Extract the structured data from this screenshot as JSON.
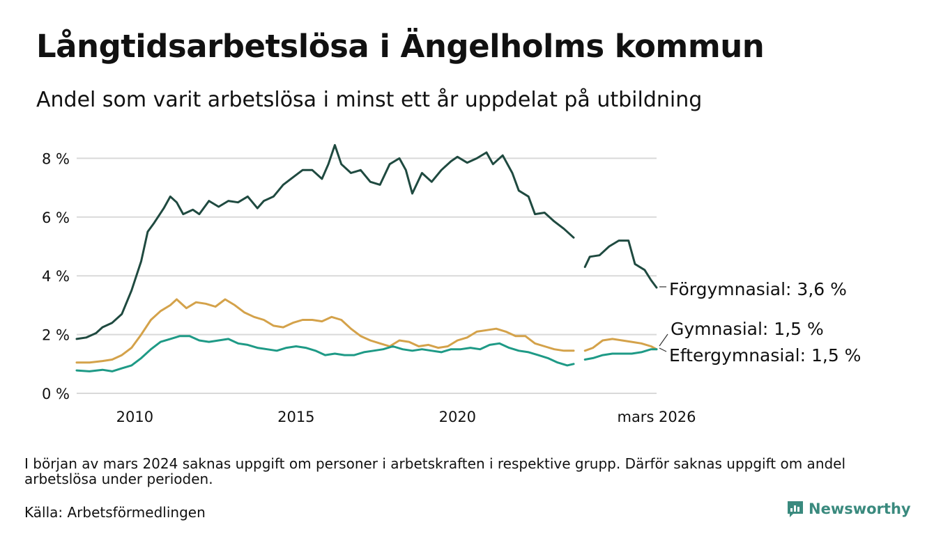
{
  "header": {
    "title": "Långtidsarbetslösa i Ängelholms kommun",
    "subtitle": "Andel som varit arbetslösa i minst ett år uppdelat på utbildning"
  },
  "footer": {
    "note": "I början av mars 2024 saknas uppgift om personer i arbetskraften i respektive grupp. Därför saknas uppgift om andel arbetslösa under perioden.",
    "source": "Källa: Arbetsförmedlingen",
    "brand": "Newsworthy"
  },
  "colors": {
    "forgymnasial": "#1f4a40",
    "gymnasial": "#d4a24a",
    "eftergymnasial": "#1e9a86",
    "grid": "#d9d9d9",
    "brand": "#3a8a7e"
  },
  "chart_data": {
    "type": "line",
    "title": "Långtidsarbetslösa i Ängelholms kommun",
    "xlabel": "",
    "ylabel": "",
    "xlim": [
      2008.2,
      2026.17
    ],
    "ylim": [
      0,
      8.6
    ],
    "y_ticks": [
      0,
      2,
      4,
      6,
      8
    ],
    "y_tick_labels": [
      "0 %",
      "2 %",
      "4 %",
      "6 %",
      "8 %"
    ],
    "x_ticks": [
      2010,
      2015,
      2020,
      2026.17
    ],
    "x_tick_labels": [
      "2010",
      "2015",
      "2020",
      "mars 2026"
    ],
    "grid": true,
    "gap": [
      2023.6,
      2023.95
    ],
    "series": [
      {
        "name": "Förgymnasial",
        "label": "Förgymnasial: 3,6 %",
        "color_key": "forgymnasial",
        "points": [
          [
            2008.2,
            1.85
          ],
          [
            2008.5,
            1.9
          ],
          [
            2008.8,
            2.05
          ],
          [
            2009.0,
            2.25
          ],
          [
            2009.3,
            2.4
          ],
          [
            2009.6,
            2.7
          ],
          [
            2009.9,
            3.5
          ],
          [
            2010.2,
            4.5
          ],
          [
            2010.4,
            5.5
          ],
          [
            2010.6,
            5.8
          ],
          [
            2010.9,
            6.3
          ],
          [
            2011.1,
            6.7
          ],
          [
            2011.3,
            6.5
          ],
          [
            2011.5,
            6.1
          ],
          [
            2011.8,
            6.25
          ],
          [
            2012.0,
            6.1
          ],
          [
            2012.3,
            6.55
          ],
          [
            2012.6,
            6.35
          ],
          [
            2012.9,
            6.55
          ],
          [
            2013.2,
            6.5
          ],
          [
            2013.5,
            6.7
          ],
          [
            2013.8,
            6.3
          ],
          [
            2014.0,
            6.55
          ],
          [
            2014.3,
            6.7
          ],
          [
            2014.6,
            7.1
          ],
          [
            2014.9,
            7.35
          ],
          [
            2015.2,
            7.6
          ],
          [
            2015.5,
            7.6
          ],
          [
            2015.8,
            7.3
          ],
          [
            2016.0,
            7.8
          ],
          [
            2016.2,
            8.45
          ],
          [
            2016.4,
            7.8
          ],
          [
            2016.7,
            7.5
          ],
          [
            2017.0,
            7.6
          ],
          [
            2017.3,
            7.2
          ],
          [
            2017.6,
            7.1
          ],
          [
            2017.9,
            7.8
          ],
          [
            2018.2,
            8.0
          ],
          [
            2018.4,
            7.6
          ],
          [
            2018.6,
            6.8
          ],
          [
            2018.9,
            7.5
          ],
          [
            2019.2,
            7.2
          ],
          [
            2019.5,
            7.6
          ],
          [
            2019.8,
            7.9
          ],
          [
            2020.0,
            8.05
          ],
          [
            2020.3,
            7.85
          ],
          [
            2020.6,
            8.0
          ],
          [
            2020.9,
            8.2
          ],
          [
            2021.1,
            7.8
          ],
          [
            2021.4,
            8.1
          ],
          [
            2021.7,
            7.5
          ],
          [
            2021.9,
            6.9
          ],
          [
            2022.2,
            6.7
          ],
          [
            2022.4,
            6.1
          ],
          [
            2022.7,
            6.15
          ],
          [
            2023.0,
            5.85
          ],
          [
            2023.3,
            5.6
          ],
          [
            2023.6,
            5.3
          ],
          [
            2023.95,
            4.3
          ],
          [
            2024.1,
            4.65
          ],
          [
            2024.4,
            4.7
          ],
          [
            2024.7,
            5.0
          ],
          [
            2025.0,
            5.2
          ],
          [
            2025.3,
            5.2
          ],
          [
            2025.5,
            4.4
          ],
          [
            2025.8,
            4.2
          ],
          [
            2026.0,
            3.85
          ],
          [
            2026.17,
            3.6
          ]
        ]
      },
      {
        "name": "Gymnasial",
        "label": "Gymnasial: 1,5 %",
        "color_key": "gymnasial",
        "points": [
          [
            2008.2,
            1.05
          ],
          [
            2008.6,
            1.05
          ],
          [
            2009.0,
            1.1
          ],
          [
            2009.3,
            1.15
          ],
          [
            2009.6,
            1.3
          ],
          [
            2009.9,
            1.55
          ],
          [
            2010.2,
            2.0
          ],
          [
            2010.5,
            2.5
          ],
          [
            2010.8,
            2.8
          ],
          [
            2011.1,
            3.0
          ],
          [
            2011.3,
            3.2
          ],
          [
            2011.6,
            2.9
          ],
          [
            2011.9,
            3.1
          ],
          [
            2012.2,
            3.05
          ],
          [
            2012.5,
            2.95
          ],
          [
            2012.8,
            3.2
          ],
          [
            2013.1,
            3.0
          ],
          [
            2013.4,
            2.75
          ],
          [
            2013.7,
            2.6
          ],
          [
            2014.0,
            2.5
          ],
          [
            2014.3,
            2.3
          ],
          [
            2014.6,
            2.25
          ],
          [
            2014.9,
            2.4
          ],
          [
            2015.2,
            2.5
          ],
          [
            2015.5,
            2.5
          ],
          [
            2015.8,
            2.45
          ],
          [
            2016.1,
            2.6
          ],
          [
            2016.4,
            2.5
          ],
          [
            2016.7,
            2.2
          ],
          [
            2017.0,
            1.95
          ],
          [
            2017.3,
            1.8
          ],
          [
            2017.6,
            1.7
          ],
          [
            2017.9,
            1.6
          ],
          [
            2018.2,
            1.8
          ],
          [
            2018.5,
            1.75
          ],
          [
            2018.8,
            1.6
          ],
          [
            2019.1,
            1.65
          ],
          [
            2019.4,
            1.55
          ],
          [
            2019.7,
            1.6
          ],
          [
            2020.0,
            1.8
          ],
          [
            2020.3,
            1.9
          ],
          [
            2020.6,
            2.1
          ],
          [
            2020.9,
            2.15
          ],
          [
            2021.2,
            2.2
          ],
          [
            2021.5,
            2.1
          ],
          [
            2021.8,
            1.95
          ],
          [
            2022.1,
            1.95
          ],
          [
            2022.4,
            1.7
          ],
          [
            2022.7,
            1.6
          ],
          [
            2023.0,
            1.5
          ],
          [
            2023.3,
            1.45
          ],
          [
            2023.6,
            1.45
          ],
          [
            2023.95,
            1.45
          ],
          [
            2024.2,
            1.55
          ],
          [
            2024.5,
            1.8
          ],
          [
            2024.8,
            1.85
          ],
          [
            2025.1,
            1.8
          ],
          [
            2025.4,
            1.75
          ],
          [
            2025.7,
            1.7
          ],
          [
            2026.0,
            1.6
          ],
          [
            2026.17,
            1.5
          ]
        ]
      },
      {
        "name": "Eftergymnasial",
        "label": "Eftergymnasial: 1,5 %",
        "color_key": "eftergymnasial",
        "points": [
          [
            2008.2,
            0.78
          ],
          [
            2008.6,
            0.75
          ],
          [
            2009.0,
            0.8
          ],
          [
            2009.3,
            0.75
          ],
          [
            2009.6,
            0.85
          ],
          [
            2009.9,
            0.95
          ],
          [
            2010.2,
            1.2
          ],
          [
            2010.5,
            1.5
          ],
          [
            2010.8,
            1.75
          ],
          [
            2011.1,
            1.85
          ],
          [
            2011.4,
            1.95
          ],
          [
            2011.7,
            1.95
          ],
          [
            2012.0,
            1.8
          ],
          [
            2012.3,
            1.75
          ],
          [
            2012.6,
            1.8
          ],
          [
            2012.9,
            1.85
          ],
          [
            2013.2,
            1.7
          ],
          [
            2013.5,
            1.65
          ],
          [
            2013.8,
            1.55
          ],
          [
            2014.1,
            1.5
          ],
          [
            2014.4,
            1.45
          ],
          [
            2014.7,
            1.55
          ],
          [
            2015.0,
            1.6
          ],
          [
            2015.3,
            1.55
          ],
          [
            2015.6,
            1.45
          ],
          [
            2015.9,
            1.3
          ],
          [
            2016.2,
            1.35
          ],
          [
            2016.5,
            1.3
          ],
          [
            2016.8,
            1.3
          ],
          [
            2017.1,
            1.4
          ],
          [
            2017.4,
            1.45
          ],
          [
            2017.7,
            1.5
          ],
          [
            2018.0,
            1.6
          ],
          [
            2018.3,
            1.5
          ],
          [
            2018.6,
            1.45
          ],
          [
            2018.9,
            1.5
          ],
          [
            2019.2,
            1.45
          ],
          [
            2019.5,
            1.4
          ],
          [
            2019.8,
            1.5
          ],
          [
            2020.1,
            1.5
          ],
          [
            2020.4,
            1.55
          ],
          [
            2020.7,
            1.5
          ],
          [
            2021.0,
            1.65
          ],
          [
            2021.3,
            1.7
          ],
          [
            2021.6,
            1.55
          ],
          [
            2021.9,
            1.45
          ],
          [
            2022.2,
            1.4
          ],
          [
            2022.5,
            1.3
          ],
          [
            2022.8,
            1.2
          ],
          [
            2023.1,
            1.05
          ],
          [
            2023.4,
            0.95
          ],
          [
            2023.6,
            1.0
          ],
          [
            2023.95,
            1.15
          ],
          [
            2024.2,
            1.2
          ],
          [
            2024.5,
            1.3
          ],
          [
            2024.8,
            1.35
          ],
          [
            2025.1,
            1.35
          ],
          [
            2025.4,
            1.35
          ],
          [
            2025.7,
            1.4
          ],
          [
            2026.0,
            1.5
          ],
          [
            2026.17,
            1.5
          ]
        ]
      }
    ]
  }
}
